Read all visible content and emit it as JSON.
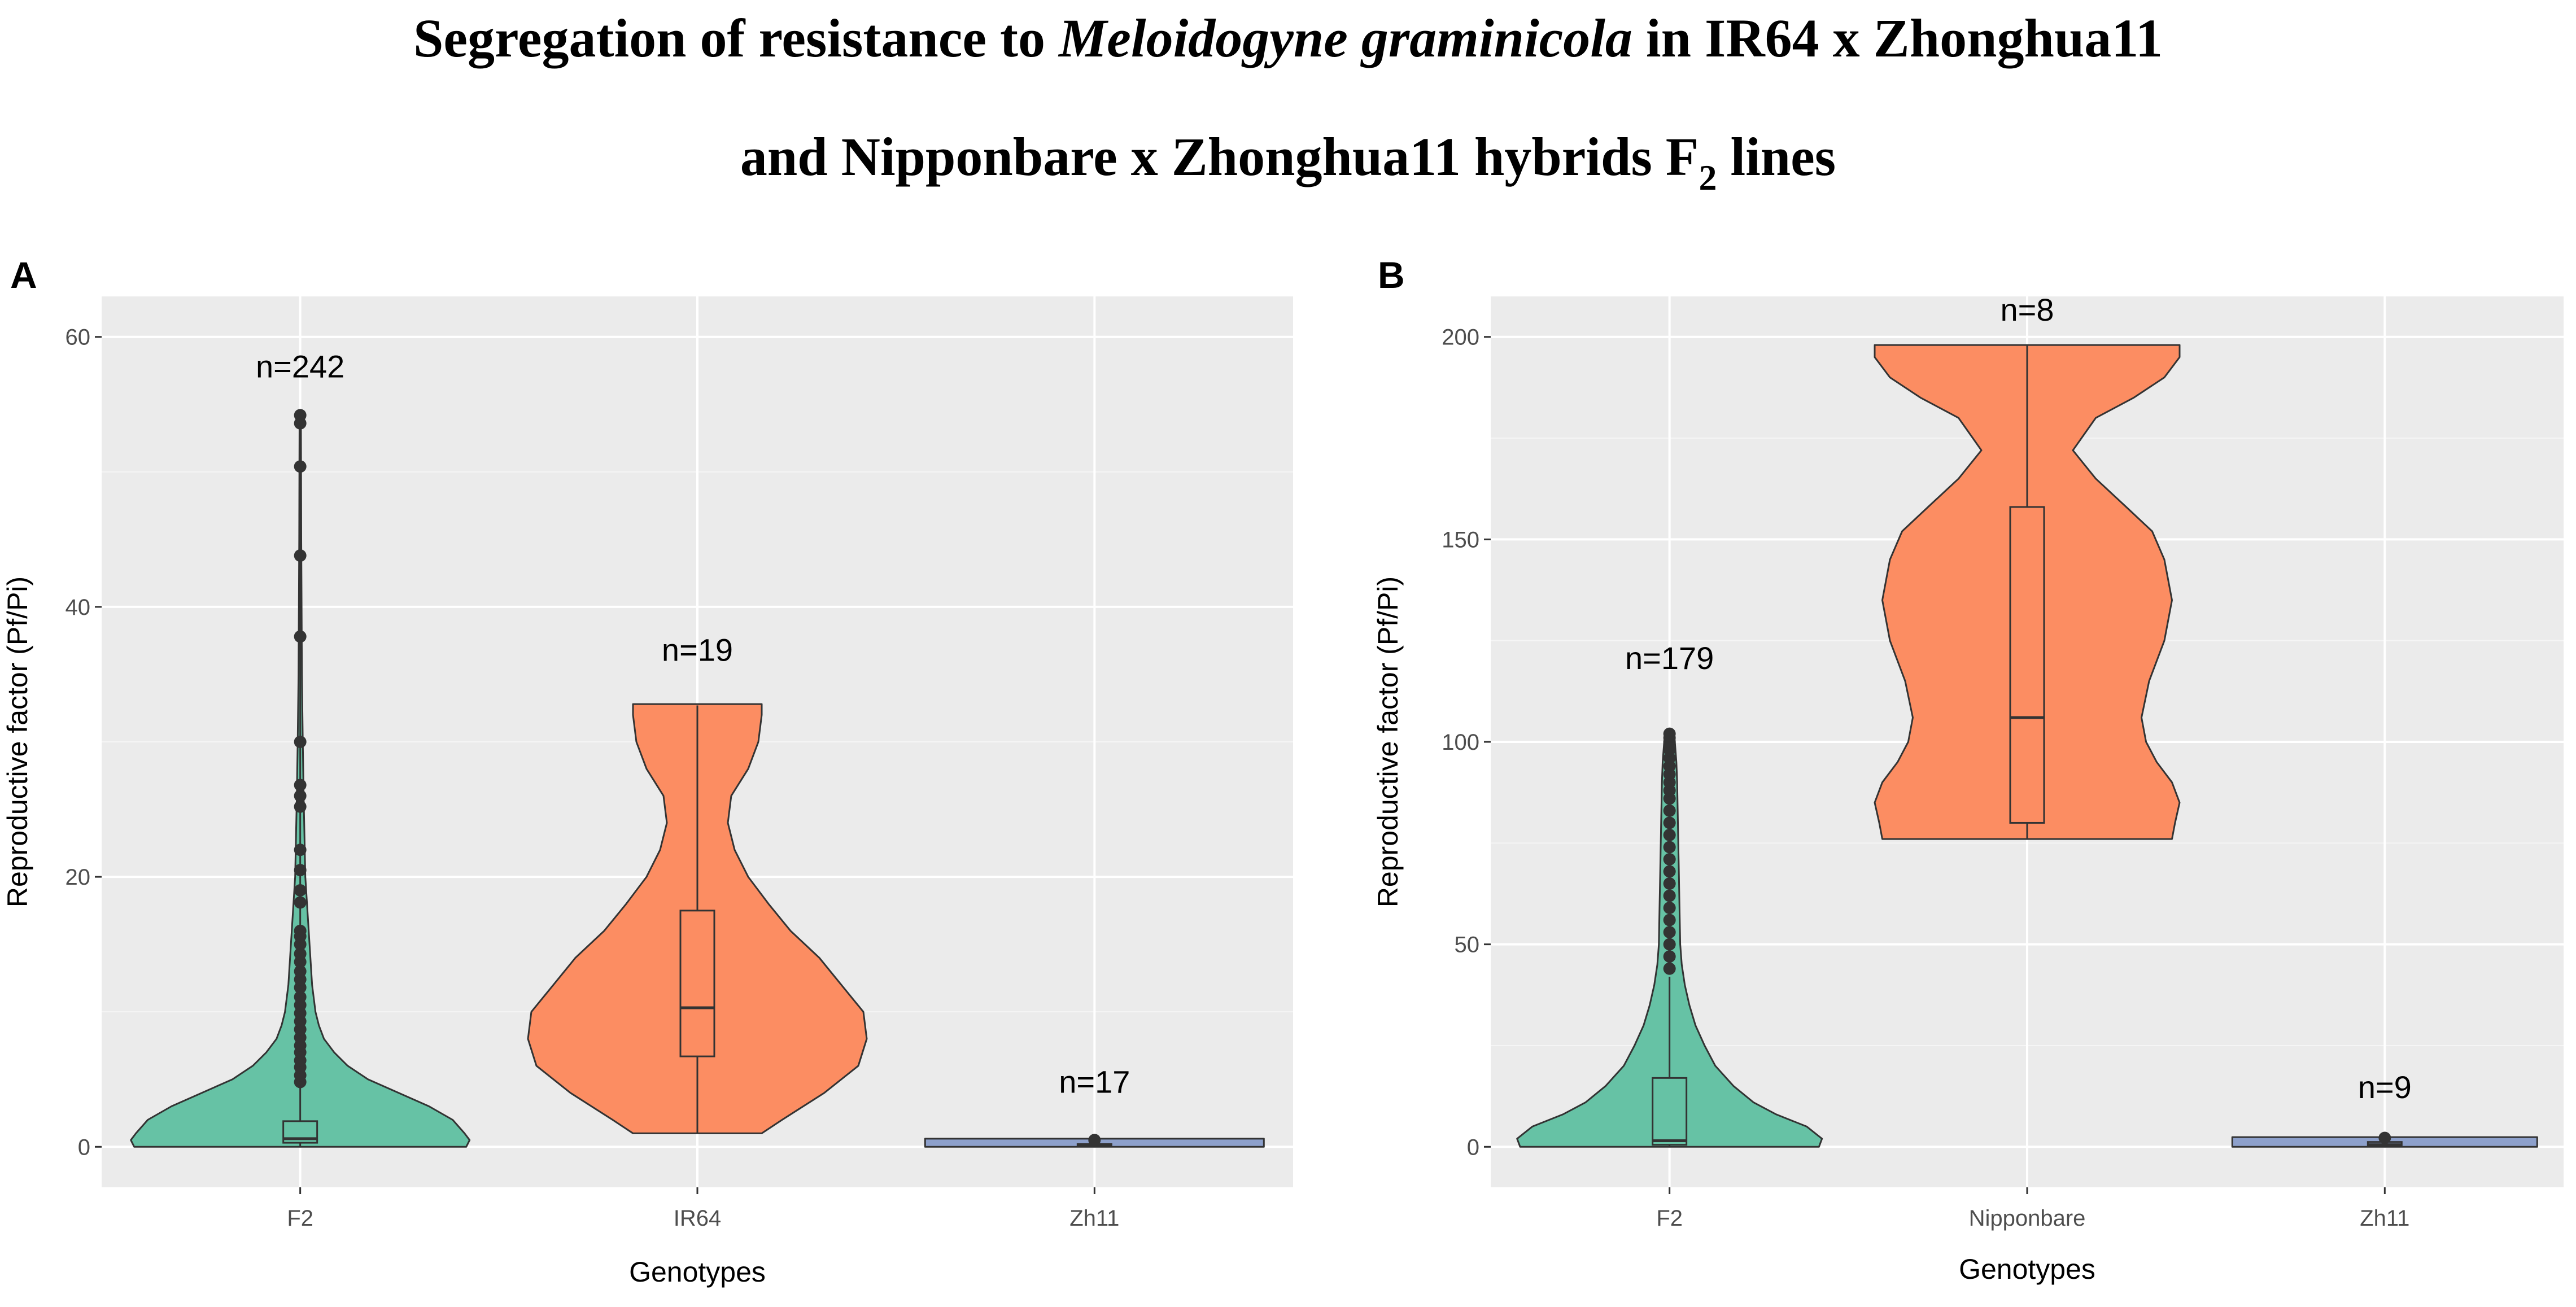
{
  "figure": {
    "title_line1_pre": "Segregation of resistance to ",
    "title_line1_italic": "Meloidogyne graminicola",
    "title_line1_post": " in IR64 x Zhonghua11",
    "title_line2_pre": "and Nipponbare x Zhonghua11 hybrids F",
    "title_line2_sub": "2",
    "title_line2_post": " lines"
  },
  "chart_data": [
    {
      "type": "violin",
      "panel_label": "A",
      "xlabel": "Genotypes",
      "ylabel": "Reproductive factor (Pf/Pi)",
      "ylim": [
        -3,
        63
      ],
      "yticks": [
        0,
        20,
        40,
        60
      ],
      "grid": true,
      "categories": [
        "F2",
        "IR64",
        "Zh11"
      ],
      "series": [
        {
          "name": "F2",
          "n_label": "n=242",
          "n_label_y": 57,
          "color": "#66C2A5",
          "box": {
            "q1": 0.3,
            "median": 0.6,
            "q3": 1.9,
            "whisker_low": 0,
            "whisker_high": 54
          },
          "density": [
            [
              0,
              0.98
            ],
            [
              0.5,
              1.0
            ],
            [
              1,
              0.97
            ],
            [
              2,
              0.9
            ],
            [
              3,
              0.76
            ],
            [
              4,
              0.58
            ],
            [
              5,
              0.4
            ],
            [
              6,
              0.28
            ],
            [
              7,
              0.2
            ],
            [
              8,
              0.14
            ],
            [
              9,
              0.11
            ],
            [
              10,
              0.09
            ],
            [
              12,
              0.07
            ],
            [
              14,
              0.06
            ],
            [
              16,
              0.05
            ],
            [
              18,
              0.04
            ],
            [
              20,
              0.03
            ],
            [
              23,
              0.025
            ],
            [
              26,
              0.02
            ],
            [
              30,
              0.015
            ],
            [
              35,
              0.01
            ],
            [
              40,
              0.008
            ],
            [
              45,
              0.006
            ],
            [
              50,
              0.005
            ],
            [
              54,
              0.004
            ]
          ],
          "outliers": [
            4.8,
            5.3,
            5.9,
            6.4,
            7.0,
            7.5,
            8.1,
            8.7,
            9.3,
            9.9,
            10.5,
            11.1,
            11.8,
            12.4,
            13.0,
            13.7,
            14.3,
            15.0,
            15.6,
            16.0,
            18.1,
            19.0,
            20.5,
            22.0,
            25.2,
            26.0,
            26.8,
            30.0,
            37.8,
            43.8,
            50.4,
            53.6,
            54.2
          ]
        },
        {
          "name": "IR64",
          "n_label": "n=19",
          "n_label_y": 36,
          "color": "#FC8D62",
          "box": {
            "q1": 6.7,
            "median": 10.3,
            "q3": 17.5,
            "whisker_low": 1.0,
            "whisker_high": 32.7
          },
          "density": [
            [
              1.0,
              0.38
            ],
            [
              2,
              0.5
            ],
            [
              4,
              0.75
            ],
            [
              6,
              0.95
            ],
            [
              8,
              1.0
            ],
            [
              10,
              0.98
            ],
            [
              12,
              0.85
            ],
            [
              14,
              0.72
            ],
            [
              16,
              0.55
            ],
            [
              18,
              0.42
            ],
            [
              20,
              0.3
            ],
            [
              22,
              0.22
            ],
            [
              24,
              0.18
            ],
            [
              26,
              0.2
            ],
            [
              28,
              0.3
            ],
            [
              30,
              0.36
            ],
            [
              32,
              0.38
            ],
            [
              32.8,
              0.38
            ]
          ],
          "outliers": []
        },
        {
          "name": "Zh11",
          "n_label": "n=17",
          "n_label_y": 4,
          "color": "#8DA0CB",
          "box": {
            "q1": 0.05,
            "median": 0.1,
            "q3": 0.2,
            "whisker_low": 0,
            "whisker_high": 0.4
          },
          "density": [
            [
              0,
              1.0
            ],
            [
              0.6,
              1.0
            ]
          ],
          "outliers": [
            0.5
          ]
        }
      ]
    },
    {
      "type": "violin",
      "panel_label": "B",
      "xlabel": "Genotypes",
      "ylabel": "Reproductive factor (Pf/Pi)",
      "ylim": [
        -10,
        210
      ],
      "yticks": [
        0,
        50,
        100,
        150,
        200
      ],
      "grid": true,
      "categories": [
        "F2",
        "Nipponbare",
        "Zh11"
      ],
      "series": [
        {
          "name": "F2",
          "n_label": "n=179",
          "n_label_y": 118,
          "color": "#66C2A5",
          "box": {
            "q1": 0.5,
            "median": 1.5,
            "q3": 17,
            "whisker_low": 0,
            "whisker_high": 42
          },
          "density": [
            [
              0,
              0.98
            ],
            [
              2,
              1.0
            ],
            [
              5,
              0.9
            ],
            [
              8,
              0.7
            ],
            [
              11,
              0.55
            ],
            [
              15,
              0.42
            ],
            [
              20,
              0.3
            ],
            [
              25,
              0.23
            ],
            [
              30,
              0.17
            ],
            [
              35,
              0.13
            ],
            [
              40,
              0.1
            ],
            [
              45,
              0.08
            ],
            [
              50,
              0.07
            ],
            [
              60,
              0.065
            ],
            [
              70,
              0.06
            ],
            [
              80,
              0.055
            ],
            [
              90,
              0.05
            ],
            [
              95,
              0.045
            ],
            [
              100,
              0.035
            ],
            [
              102,
              0.03
            ]
          ],
          "outliers": [
            44,
            47,
            50,
            53,
            56,
            59,
            62,
            65,
            68,
            71,
            74,
            77,
            80,
            83,
            86,
            88,
            90,
            92,
            94,
            96,
            98,
            100,
            101,
            102
          ]
        },
        {
          "name": "Nipponbare",
          "n_label": "n=8",
          "n_label_y": 204,
          "color": "#FC8D62",
          "box": {
            "q1": 80,
            "median": 106,
            "q3": 158,
            "whisker_low": 76,
            "whisker_high": 198
          },
          "density": [
            [
              76,
              0.95
            ],
            [
              80,
              0.97
            ],
            [
              85,
              1.0
            ],
            [
              90,
              0.95
            ],
            [
              95,
              0.85
            ],
            [
              100,
              0.78
            ],
            [
              106,
              0.75
            ],
            [
              115,
              0.8
            ],
            [
              125,
              0.9
            ],
            [
              135,
              0.95
            ],
            [
              145,
              0.9
            ],
            [
              152,
              0.82
            ],
            [
              158,
              0.65
            ],
            [
              165,
              0.45
            ],
            [
              172,
              0.3
            ],
            [
              180,
              0.45
            ],
            [
              185,
              0.7
            ],
            [
              190,
              0.9
            ],
            [
              195,
              1.0
            ],
            [
              198,
              1.0
            ]
          ],
          "outliers": []
        },
        {
          "name": "Zh11",
          "n_label": "n=9",
          "n_label_y": 12,
          "color": "#8DA0CB",
          "box": {
            "q1": 0.2,
            "median": 0.5,
            "q3": 1.2,
            "whisker_low": 0,
            "whisker_high": 2
          },
          "density": [
            [
              0,
              1.0
            ],
            [
              2.4,
              1.0
            ]
          ],
          "outliers": [
            2.2
          ]
        }
      ]
    }
  ]
}
